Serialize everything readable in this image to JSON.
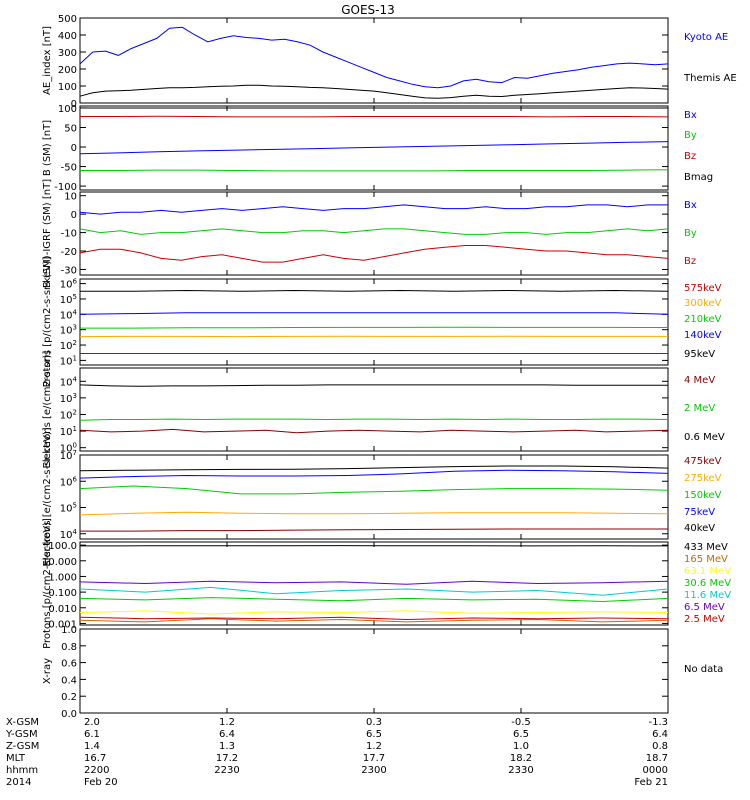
{
  "title": "GOES-13",
  "colors": {
    "frame": "#000000",
    "text": "#000000",
    "blue": "#0000ff",
    "black": "#000000",
    "green": "#00cc00",
    "red": "#cc0000",
    "orange": "#ffaa00",
    "yellow": "#ffff00",
    "cyan": "#00cccc",
    "purple": "#6600cc",
    "darkred": "#880000",
    "magenta": "#aa00aa"
  },
  "footer": {
    "row_labels": [
      "X-GSM",
      "Y-GSM",
      "Z-GSM",
      "MLT",
      "hhmm",
      "2014"
    ],
    "columns": [
      {
        "x_gsm": "2.0",
        "y_gsm": "6.1",
        "z_gsm": "1.4",
        "mlt": "16.7",
        "hhmm": "2200",
        "date": "Feb 20"
      },
      {
        "x_gsm": "1.2",
        "y_gsm": "6.4",
        "z_gsm": "1.3",
        "mlt": "17.2",
        "hhmm": "2230",
        "date": ""
      },
      {
        "x_gsm": "0.3",
        "y_gsm": "6.5",
        "z_gsm": "1.2",
        "mlt": "17.7",
        "hhmm": "2300",
        "date": ""
      },
      {
        "x_gsm": "-0.5",
        "y_gsm": "6.5",
        "z_gsm": "1.0",
        "mlt": "18.2",
        "hhmm": "2330",
        "date": ""
      },
      {
        "x_gsm": "-1.3",
        "y_gsm": "6.4",
        "z_gsm": "0.8",
        "mlt": "18.7",
        "hhmm": "0000",
        "date": "Feb 21"
      }
    ]
  },
  "chart_data": [
    {
      "type": "line",
      "ylabel": "AE_index [nT]",
      "ylim": [
        0,
        500
      ],
      "log": false,
      "yticks": [
        "0",
        "100",
        "200",
        "300",
        "400",
        "500"
      ],
      "legend": [
        "Kyoto AE",
        "Themis AE"
      ],
      "series": [
        {
          "name": "Kyoto AE",
          "color": "#0000ff",
          "values": [
            230,
            300,
            305,
            280,
            320,
            350,
            380,
            440,
            445,
            400,
            360,
            380,
            395,
            385,
            380,
            370,
            375,
            360,
            340,
            300,
            270,
            240,
            210,
            180,
            150,
            130,
            110,
            95,
            90,
            100,
            130,
            140,
            125,
            120,
            150,
            145,
            160,
            175,
            185,
            195,
            210,
            220,
            230,
            235,
            230,
            225,
            230
          ]
        },
        {
          "name": "Themis AE",
          "color": "#000000",
          "values": [
            40,
            60,
            70,
            72,
            75,
            80,
            85,
            90,
            90,
            92,
            95,
            98,
            100,
            105,
            105,
            100,
            98,
            95,
            92,
            90,
            85,
            80,
            75,
            70,
            60,
            50,
            40,
            30,
            28,
            32,
            40,
            45,
            40,
            38,
            45,
            50,
            55,
            60,
            65,
            70,
            75,
            80,
            85,
            90,
            88,
            85,
            82
          ]
        }
      ]
    },
    {
      "type": "line",
      "ylabel": "B (SM) [nT]",
      "ylim": [
        -110,
        105
      ],
      "log": false,
      "yticks": [
        "-100",
        "-50",
        "0",
        "50",
        "100"
      ],
      "legend": [
        "Bx",
        "By",
        "Bz",
        "Bmag"
      ],
      "series": [
        {
          "name": "Bx",
          "color": "#0000ff",
          "values": [
            -17,
            -15,
            -12,
            -10,
            -8,
            -6,
            -4,
            -2,
            0,
            2,
            4,
            6,
            8,
            10,
            12,
            14
          ]
        },
        {
          "name": "By",
          "color": "#00cc00",
          "values": [
            -60,
            -60,
            -59,
            -59,
            -60,
            -61,
            -61,
            -61,
            -61,
            -61,
            -60,
            -60,
            -60,
            -60,
            -59,
            -58
          ]
        },
        {
          "name": "Bz",
          "color": "#cc0000",
          "values": [
            78,
            78,
            79,
            78,
            77,
            77,
            77,
            78,
            78,
            78,
            78,
            78,
            77,
            78,
            78,
            77
          ]
        },
        {
          "name": "Bmag",
          "color": "#000000",
          "values": [
            100,
            100,
            100,
            100,
            100,
            100,
            100,
            100,
            100,
            100,
            100,
            100,
            100,
            100,
            100,
            100
          ]
        }
      ]
    },
    {
      "type": "line",
      "ylabel": "B (SM)-IGRF (SM) [nT]",
      "ylim": [
        -33,
        12
      ],
      "log": false,
      "yticks": [
        "-30",
        "-20",
        "-10",
        "0",
        "10"
      ],
      "legend": [
        "Bx",
        "By",
        "Bz"
      ],
      "series": [
        {
          "name": "Bx",
          "color": "#0000ff",
          "values": [
            1,
            0,
            1,
            1,
            2,
            1,
            2,
            3,
            2,
            3,
            4,
            3,
            2,
            3,
            3,
            4,
            5,
            4,
            3,
            3,
            4,
            3,
            3,
            4,
            4,
            5,
            5,
            4,
            5,
            5
          ]
        },
        {
          "name": "By",
          "color": "#00cc00",
          "values": [
            -8,
            -10,
            -9,
            -11,
            -10,
            -10,
            -9,
            -8,
            -9,
            -10,
            -10,
            -9,
            -9,
            -10,
            -9,
            -8,
            -8,
            -9,
            -10,
            -11,
            -11,
            -10,
            -10,
            -11,
            -10,
            -10,
            -9,
            -8,
            -9,
            -8
          ]
        },
        {
          "name": "Bz",
          "color": "#cc0000",
          "values": [
            -21,
            -19,
            -19,
            -21,
            -24,
            -25,
            -23,
            -22,
            -24,
            -26,
            -26,
            -24,
            -22,
            -24,
            -25,
            -23,
            -21,
            -19,
            -18,
            -17,
            -17,
            -18,
            -19,
            -20,
            -20,
            -21,
            -22,
            -22,
            -23,
            -24
          ]
        }
      ]
    },
    {
      "type": "line",
      "ylabel": "Protons [p/(cm2-s-sr-keV)]",
      "ylim": [
        0.7,
        6.3
      ],
      "log": true,
      "yticks": [
        "10^1",
        "10^2",
        "10^3",
        "10^4",
        "10^5",
        "10^6"
      ],
      "legend": [
        "575keV",
        "300keV",
        "210keV",
        "140keV",
        "95keV"
      ],
      "series": [
        {
          "name": "575keV",
          "color": "#cc0000",
          "values": [
            1.45,
            1.45,
            1.45,
            1.45,
            1.45,
            1.45,
            1.45,
            1.45,
            1.45,
            1.45,
            1.45,
            1.45
          ]
        },
        {
          "name": "300keV",
          "color": "#ffaa00",
          "values": [
            2.55,
            2.56,
            2.56,
            2.55,
            2.56,
            2.57,
            2.56,
            2.56,
            2.57,
            2.56,
            2.56,
            2.56
          ]
        },
        {
          "name": "210keV",
          "color": "#00cc00",
          "values": [
            3.1,
            3.1,
            3.12,
            3.12,
            3.14,
            3.15,
            3.15,
            3.16,
            3.15,
            3.15,
            3.15,
            3.14
          ]
        },
        {
          "name": "140keV",
          "color": "#0000ff",
          "values": [
            4.0,
            4.05,
            4.1,
            4.1,
            4.1,
            4.1,
            4.1,
            4.1,
            4.1,
            4.1,
            4.1,
            4.0
          ]
        },
        {
          "name": "95keV",
          "color": "#000000",
          "values": [
            5.5,
            5.5,
            5.55,
            5.5,
            5.55,
            5.5,
            5.55,
            5.5,
            5.55,
            5.5,
            5.55,
            5.5
          ]
        }
      ]
    },
    {
      "type": "line",
      "ylabel": "Electrons [e/(cm2-s-sr)]",
      "ylim": [
        -0.2,
        4.8
      ],
      "log": true,
      "yticks": [
        "10^0",
        "10^1",
        "10^2",
        "10^3",
        "10^4"
      ],
      "legend": [
        "4 MeV",
        "2 MeV",
        "0.6 MeV"
      ],
      "series": [
        {
          "name": "4 MeV",
          "color": "#880000",
          "values": [
            1.05,
            0.95,
            1.0,
            1.1,
            0.95,
            1.0,
            1.05,
            0.9,
            1.0,
            1.05,
            1.0,
            0.95,
            1.05,
            1.0,
            0.95,
            1.0,
            1.05,
            0.95,
            1.0,
            1.05
          ]
        },
        {
          "name": "2 MeV",
          "color": "#00cc00",
          "values": [
            1.65,
            1.7,
            1.7,
            1.72,
            1.7,
            1.72,
            1.72,
            1.72,
            1.7,
            1.72,
            1.72,
            1.7,
            1.72,
            1.7,
            1.72,
            1.7,
            1.7,
            1.72,
            1.72,
            1.7
          ]
        },
        {
          "name": "0.6 MeV",
          "color": "#000000",
          "values": [
            3.78,
            3.72,
            3.7,
            3.72,
            3.72,
            3.74,
            3.76,
            3.76,
            3.78,
            3.78,
            3.78,
            3.78,
            3.78,
            3.78,
            3.78,
            3.78,
            3.76,
            3.76,
            3.76,
            3.76
          ]
        }
      ]
    },
    {
      "type": "line",
      "ylabel": "Electrons [e/(cm2-s-sr-keV)]",
      "ylim": [
        3.8,
        7.0
      ],
      "log": true,
      "yticks": [
        "10^4",
        "10^5",
        "10^6",
        "10^7"
      ],
      "legend": [
        "475keV",
        "275keV",
        "150keV",
        "75keV",
        "40keV"
      ],
      "series": [
        {
          "name": "475keV",
          "color": "#880000",
          "values": [
            4.1,
            4.1,
            4.12,
            4.12,
            4.14,
            4.15,
            4.16,
            4.17,
            4.18,
            4.18,
            4.18,
            4.18
          ]
        },
        {
          "name": "275keV",
          "color": "#ffaa00",
          "values": [
            4.72,
            4.78,
            4.82,
            4.78,
            4.76,
            4.76,
            4.78,
            4.8,
            4.8,
            4.8,
            4.78,
            4.76
          ]
        },
        {
          "name": "150keV",
          "color": "#00cc00",
          "values": [
            5.72,
            5.82,
            5.72,
            5.52,
            5.52,
            5.58,
            5.62,
            5.68,
            5.72,
            5.72,
            5.7,
            5.66
          ]
        },
        {
          "name": "75keV",
          "color": "#0000ff",
          "values": [
            6.12,
            6.18,
            6.22,
            6.2,
            6.2,
            6.22,
            6.28,
            6.38,
            6.42,
            6.4,
            6.36,
            6.3
          ]
        },
        {
          "name": "40keV",
          "color": "#000000",
          "values": [
            6.4,
            6.42,
            6.44,
            6.45,
            6.46,
            6.48,
            6.52,
            6.56,
            6.58,
            6.58,
            6.55,
            6.5
          ]
        }
      ]
    },
    {
      "type": "line",
      "ylabel": "Protons [p/(cm2-s-sr-keV)]",
      "ylim": [
        -3.1,
        2.2
      ],
      "log": true,
      "yticks": [
        "0.001",
        "0.010",
        "0.100",
        "1.000",
        "10.000",
        "100.0"
      ],
      "legend": [
        "433 MeV",
        "165 MeV",
        "63.1 MeV",
        "30.6 MeV",
        "11.6 MeV",
        "6.5 MeV",
        "2.5 MeV"
      ],
      "series": [
        {
          "name": "433 MeV",
          "color": "#000000",
          "values": [
            1.95,
            1.96,
            1.96,
            1.96,
            1.97,
            1.96,
            1.96,
            1.95,
            1.96,
            1.95
          ]
        },
        {
          "name": "165 MeV",
          "color": "#cc6600",
          "values": [
            -2.8,
            -2.9,
            -2.7,
            -2.85,
            -2.75,
            -2.9,
            -2.8,
            -2.75,
            -2.9,
            -2.8
          ]
        },
        {
          "name": "63.1 MeV",
          "color": "#ffff00",
          "values": [
            -2.3,
            -2.2,
            -2.4,
            -2.25,
            -2.3,
            -2.2,
            -2.35,
            -2.3,
            -2.25,
            -2.3
          ]
        },
        {
          "name": "30.6 MeV",
          "color": "#00cc00",
          "values": [
            -1.4,
            -1.5,
            -1.35,
            -1.45,
            -1.55,
            -1.4,
            -1.5,
            -1.45,
            -1.6,
            -1.4
          ]
        },
        {
          "name": "11.6 MeV",
          "color": "#00cccc",
          "values": [
            -0.8,
            -1.0,
            -0.7,
            -1.1,
            -0.9,
            -0.8,
            -1.0,
            -0.9,
            -1.2,
            -0.8
          ]
        },
        {
          "name": "6.5 MeV",
          "color": "#6600cc",
          "values": [
            -0.35,
            -0.45,
            -0.3,
            -0.4,
            -0.35,
            -0.5,
            -0.3,
            -0.45,
            -0.4,
            -0.3
          ]
        },
        {
          "name": "2.5 MeV",
          "color": "#cc0000",
          "values": [
            -2.6,
            -2.7,
            -2.65,
            -2.7,
            -2.6,
            -2.75,
            -2.65,
            -2.7,
            -2.65,
            -2.7
          ]
        }
      ]
    },
    {
      "type": "line",
      "ylabel": "X-ray",
      "ylim": [
        0,
        1
      ],
      "log": false,
      "yticks": [
        "0.0",
        "0.2",
        "0.4",
        "0.6",
        "0.8",
        "1.0"
      ],
      "legend": [
        "No data"
      ],
      "series": []
    }
  ]
}
